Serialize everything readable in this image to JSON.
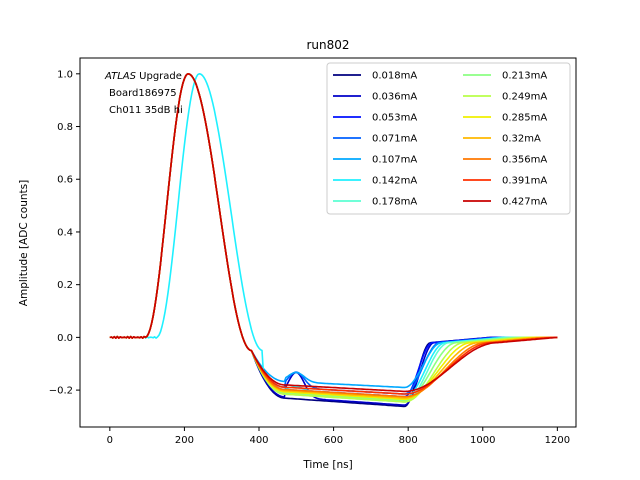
{
  "chart_data": {
    "type": "line",
    "title": "run802",
    "xlabel": "Time [ns]",
    "ylabel": "Amplitude [ADC counts]",
    "xlim": [
      -80,
      1250
    ],
    "ylim": [
      -0.34,
      1.06
    ],
    "xticks": [
      0,
      200,
      400,
      600,
      800,
      1000,
      1200
    ],
    "yticks": [
      -0.2,
      0.0,
      0.2,
      0.4,
      0.6,
      0.8,
      1.0
    ],
    "xtick_labels": [
      "0",
      "200",
      "400",
      "600",
      "800",
      "1000",
      "1200"
    ],
    "ytick_labels": [
      "−0.2",
      "0.0",
      "0.2",
      "0.4",
      "0.6",
      "0.8",
      "1.0"
    ],
    "annotation": {
      "line1_italic": "ATLAS",
      "line1_rest": " Upgrade",
      "line2": "Board186975",
      "line3": "Ch011 35dB hi"
    },
    "legend_position": "top-right",
    "legend_columns": 2,
    "series": [
      {
        "name": "0.018mA",
        "color": "#00007f",
        "shift": 0,
        "floor": -0.262,
        "end": 860,
        "bump": 0
      },
      {
        "name": "0.036mA",
        "color": "#0000c8",
        "shift": 0,
        "floor": -0.257,
        "end": 870,
        "bump": 0.16
      },
      {
        "name": "0.053mA",
        "color": "#0010ff",
        "shift": 0,
        "floor": -0.225,
        "end": 865,
        "bump": 0
      },
      {
        "name": "0.071mA",
        "color": "#0060ff",
        "shift": 0,
        "floor": -0.215,
        "end": 885,
        "bump": 0.1
      },
      {
        "name": "0.107mA",
        "color": "#00a8ff",
        "shift": 0,
        "floor": -0.19,
        "end": 890,
        "bump": 0.06
      },
      {
        "name": "0.142mA",
        "color": "#1ff0ff",
        "shift": 30,
        "floor": -0.23,
        "end": 900,
        "bump": 0.03
      },
      {
        "name": "0.178mA",
        "color": "#5cffd2",
        "shift": 0,
        "floor": -0.245,
        "end": 910,
        "bump": 0
      },
      {
        "name": "0.213mA",
        "color": "#8cff82",
        "shift": 0,
        "floor": -0.24,
        "end": 930,
        "bump": 0
      },
      {
        "name": "0.249mA",
        "color": "#b8ff48",
        "shift": 0,
        "floor": -0.245,
        "end": 950,
        "bump": 0
      },
      {
        "name": "0.285mA",
        "color": "#f0f000",
        "shift": 0,
        "floor": -0.235,
        "end": 970,
        "bump": 0
      },
      {
        "name": "0.32mA",
        "color": "#ffb800",
        "shift": 0,
        "floor": -0.23,
        "end": 990,
        "bump": 0
      },
      {
        "name": "0.356mA",
        "color": "#ff7800",
        "shift": 0,
        "floor": -0.225,
        "end": 1010,
        "bump": 0
      },
      {
        "name": "0.391mA",
        "color": "#ff3000",
        "shift": 0,
        "floor": -0.215,
        "end": 1025,
        "bump": 0
      },
      {
        "name": "0.427mA",
        "color": "#c80000",
        "shift": 0,
        "floor": -0.205,
        "end": 1040,
        "bump": 0
      }
    ]
  }
}
